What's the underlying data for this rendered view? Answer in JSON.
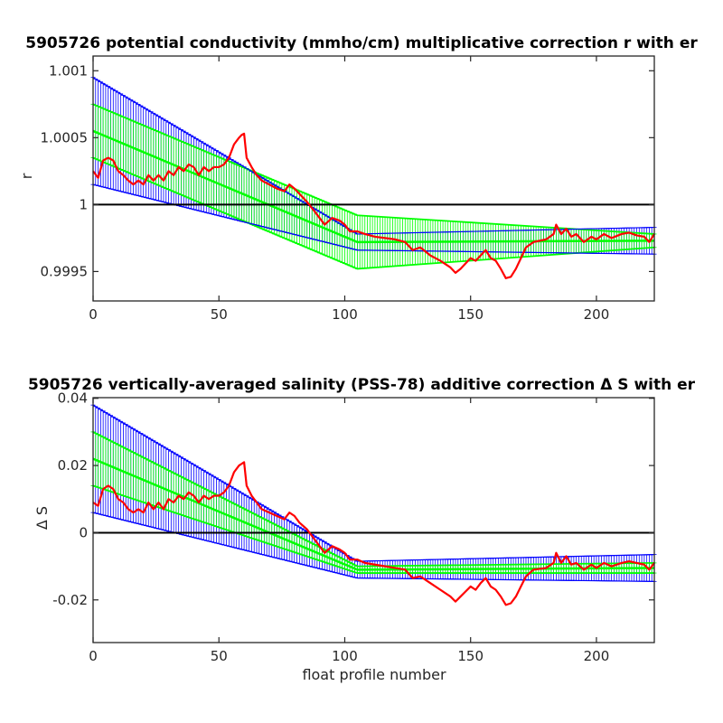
{
  "chart_data": [
    {
      "type": "line",
      "title": "5905726 potential conductivity (mmho/cm) multiplicative correction r with er",
      "xlabel": "",
      "ylabel": "r",
      "xlim": [
        0,
        223
      ],
      "ylim": [
        0.99928,
        1.00111
      ],
      "xticks": [
        0,
        50,
        100,
        150,
        200
      ],
      "xtick_labels": [
        "0",
        "50",
        "100",
        "150",
        "200"
      ],
      "yticks": [
        0.9995,
        1,
        1.0005,
        1.001
      ],
      "ytick_labels": [
        "0.9995",
        "1",
        "1.0005",
        "1.001"
      ],
      "reference_line": 1,
      "grid": false,
      "colors": {
        "raw": "#ff0000",
        "fit": "#00ff00",
        "error": "#0000ff",
        "reference": "#000000"
      },
      "fit": {
        "x": [
          0,
          105,
          223
        ],
        "y": [
          1.00055,
          0.99972,
          0.99973
        ],
        "inner_band": [
          0.0002,
          0.0002,
          5e-05
        ],
        "outer_band": [
          0.0004,
          6e-05,
          0.0001
        ]
      },
      "series": [
        {
          "x": [
            0,
            2,
            4,
            6,
            8,
            10,
            12,
            14,
            16,
            18,
            20,
            22,
            24,
            26,
            28,
            30,
            32,
            34,
            36,
            38,
            40,
            42,
            44,
            46,
            48,
            50,
            52,
            54,
            56,
            58,
            59,
            60,
            61,
            63,
            65,
            67,
            70,
            73,
            76,
            78,
            80,
            82,
            85,
            88,
            90,
            92,
            95,
            98,
            100,
            102,
            105,
            108,
            112,
            116,
            120,
            124,
            127,
            130,
            134,
            138,
            142,
            144,
            146,
            148,
            150,
            152,
            154,
            156,
            158,
            160,
            162,
            164,
            166,
            168,
            170,
            172,
            175,
            180,
            183,
            184,
            186,
            188,
            190,
            192,
            195,
            198,
            200,
            203,
            206,
            210,
            213,
            216,
            219,
            221,
            223
          ],
          "y": [
            1.00025,
            1.0002,
            1.00033,
            1.00035,
            1.00033,
            1.00025,
            1.00022,
            1.00018,
            1.00015,
            1.00018,
            1.00015,
            1.00022,
            1.00018,
            1.00022,
            1.00018,
            1.00025,
            1.00022,
            1.00028,
            1.00025,
            1.0003,
            1.00028,
            1.00022,
            1.00028,
            1.00025,
            1.00028,
            1.00028,
            1.0003,
            1.00035,
            1.00045,
            1.0005,
            1.00052,
            1.00053,
            1.00035,
            1.00028,
            1.00022,
            1.00018,
            1.00015,
            1.00012,
            1.0001,
            1.00015,
            1.00012,
            1.00008,
            1.00002,
            0.99995,
            0.9999,
            0.99985,
            0.9999,
            0.99988,
            0.99985,
            0.9998,
            0.9998,
            0.99978,
            0.99976,
            0.99975,
            0.99974,
            0.99972,
            0.99966,
            0.99968,
            0.99962,
            0.99958,
            0.99953,
            0.99949,
            0.99952,
            0.99956,
            0.9996,
            0.99958,
            0.99962,
            0.99966,
            0.9996,
            0.99958,
            0.99952,
            0.99945,
            0.99946,
            0.99952,
            0.9996,
            0.99968,
            0.99972,
            0.99974,
            0.99978,
            0.99985,
            0.99978,
            0.99982,
            0.99976,
            0.99978,
            0.99972,
            0.99976,
            0.99974,
            0.99978,
            0.99975,
            0.99978,
            0.99979,
            0.99977,
            0.99976,
            0.99972,
            0.99978
          ]
        }
      ]
    },
    {
      "type": "line",
      "title": "5905726 vertically-averaged salinity (PSS-78) additive correction Δ S with er",
      "xlabel": "float profile number",
      "ylabel": "Δ S",
      "xlim": [
        0,
        223
      ],
      "ylim": [
        -0.0327,
        0.0402
      ],
      "xticks": [
        0,
        50,
        100,
        150,
        200
      ],
      "xtick_labels": [
        "0",
        "50",
        "100",
        "150",
        "200"
      ],
      "yticks": [
        -0.02,
        0,
        0.02,
        0.04
      ],
      "ytick_labels": [
        "-0.02",
        "0",
        "0.02",
        "0.04"
      ],
      "reference_line": 0,
      "grid": false,
      "colors": {
        "raw": "#ff0000",
        "fit": "#00ff00",
        "error": "#0000ff",
        "reference": "#000000"
      },
      "fit": {
        "x": [
          0,
          105,
          223
        ],
        "y": [
          0.022,
          -0.011,
          -0.0105
        ],
        "inner_band": [
          0.008,
          0.001,
          0.0015
        ],
        "outer_band": [
          0.016,
          0.0025,
          0.004
        ]
      },
      "series": [
        {
          "x": [
            0,
            2,
            4,
            6,
            8,
            10,
            12,
            14,
            16,
            18,
            20,
            22,
            24,
            26,
            28,
            30,
            32,
            34,
            36,
            38,
            40,
            42,
            44,
            46,
            48,
            50,
            52,
            54,
            56,
            58,
            59,
            60,
            61,
            63,
            65,
            67,
            70,
            73,
            76,
            78,
            80,
            82,
            85,
            88,
            90,
            92,
            95,
            98,
            100,
            102,
            105,
            108,
            112,
            116,
            120,
            124,
            127,
            130,
            134,
            138,
            142,
            144,
            146,
            148,
            150,
            152,
            154,
            156,
            158,
            160,
            162,
            164,
            166,
            168,
            170,
            172,
            175,
            180,
            183,
            184,
            186,
            188,
            190,
            192,
            195,
            198,
            200,
            203,
            206,
            210,
            213,
            216,
            219,
            221,
            223
          ],
          "y": [
            0.009,
            0.008,
            0.013,
            0.014,
            0.013,
            0.01,
            0.009,
            0.007,
            0.006,
            0.007,
            0.006,
            0.009,
            0.007,
            0.009,
            0.007,
            0.01,
            0.009,
            0.011,
            0.01,
            0.012,
            0.011,
            0.009,
            0.011,
            0.01,
            0.011,
            0.011,
            0.012,
            0.014,
            0.018,
            0.02,
            0.0205,
            0.021,
            0.014,
            0.011,
            0.009,
            0.007,
            0.006,
            0.005,
            0.004,
            0.006,
            0.005,
            0.003,
            0.001,
            -0.002,
            -0.004,
            -0.006,
            -0.004,
            -0.005,
            -0.006,
            -0.008,
            -0.008,
            -0.009,
            -0.0095,
            -0.01,
            -0.0105,
            -0.011,
            -0.0135,
            -0.013,
            -0.015,
            -0.017,
            -0.019,
            -0.0205,
            -0.019,
            -0.0175,
            -0.016,
            -0.017,
            -0.015,
            -0.0135,
            -0.016,
            -0.017,
            -0.019,
            -0.0215,
            -0.021,
            -0.019,
            -0.016,
            -0.013,
            -0.011,
            -0.0105,
            -0.009,
            -0.006,
            -0.009,
            -0.007,
            -0.0095,
            -0.009,
            -0.011,
            -0.0095,
            -0.0105,
            -0.009,
            -0.01,
            -0.009,
            -0.0085,
            -0.009,
            -0.0095,
            -0.011,
            -0.009
          ]
        }
      ]
    }
  ]
}
